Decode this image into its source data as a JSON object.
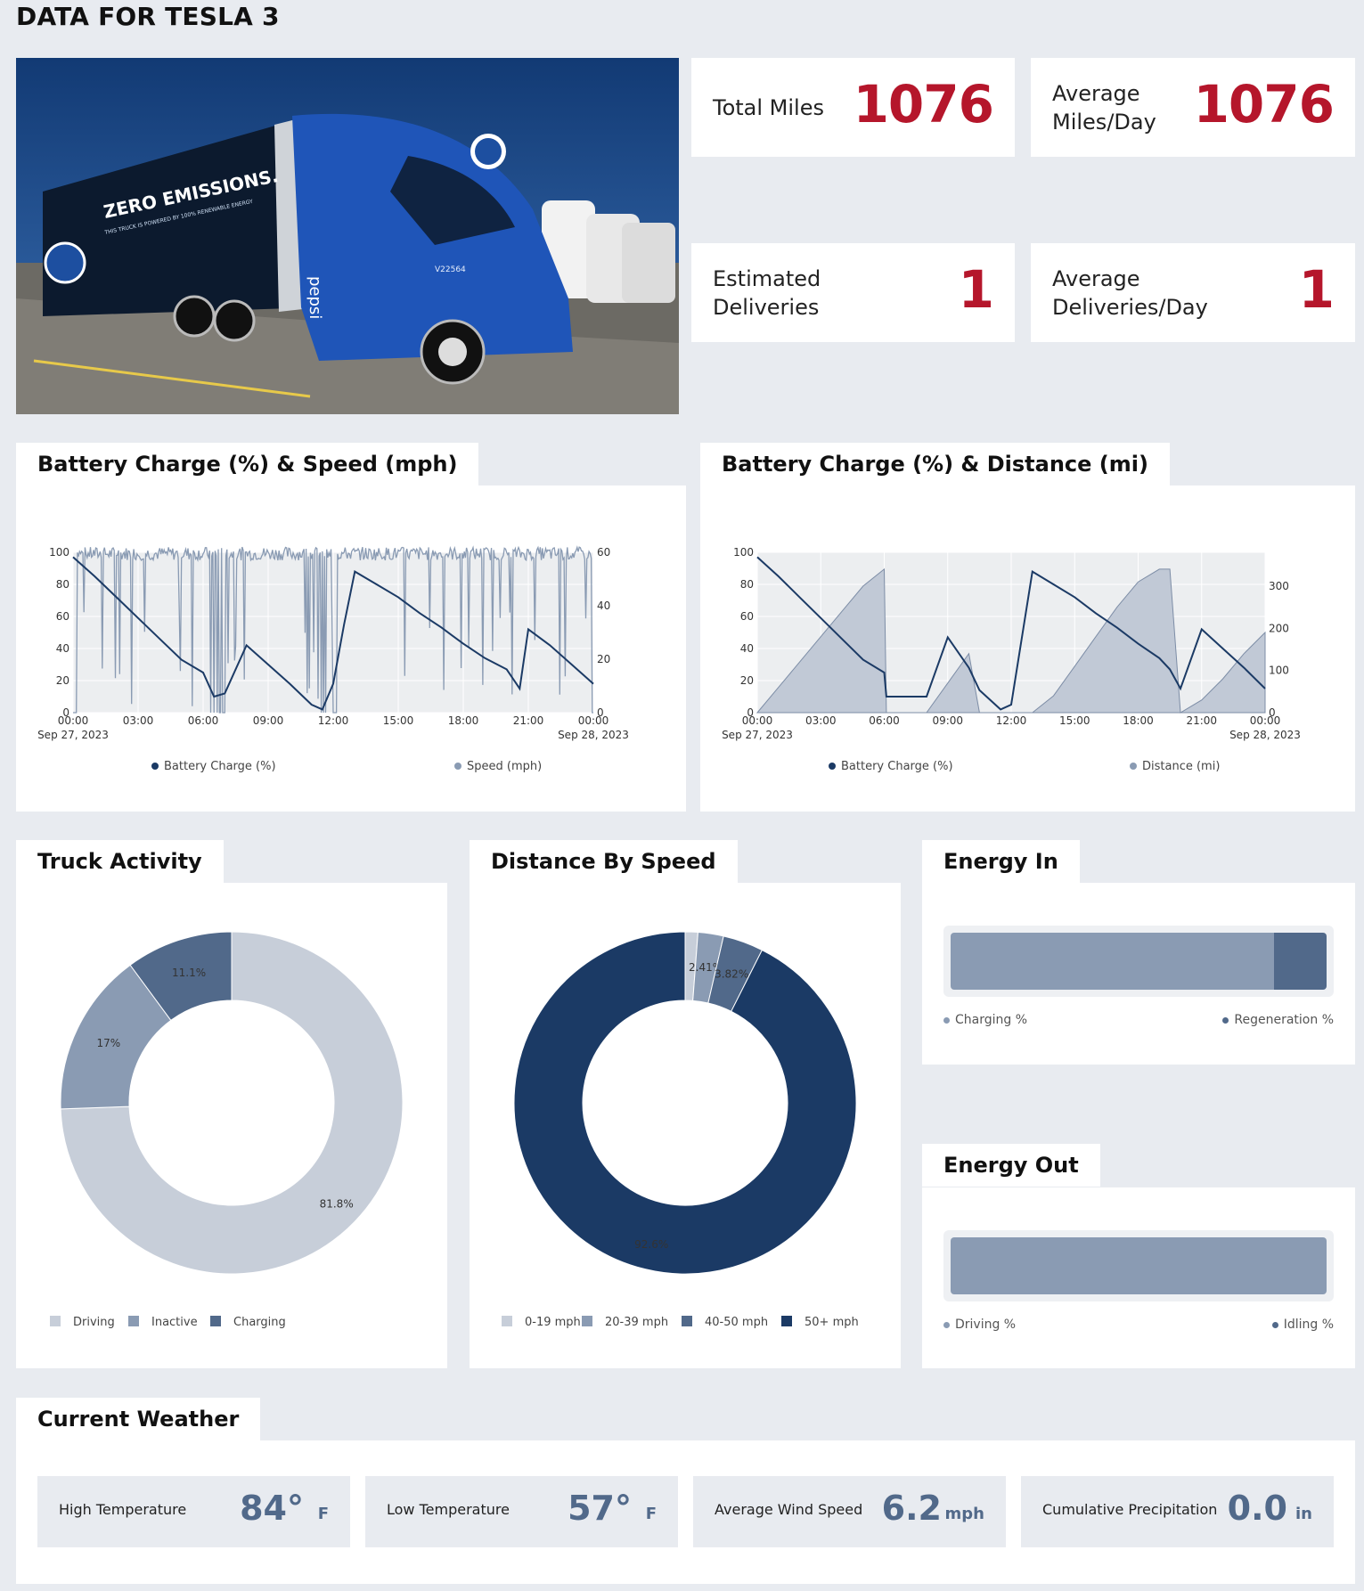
{
  "page": {
    "title": "DATA FOR TESLA 3"
  },
  "stats": [
    {
      "label": "Total Miles",
      "value": "1076"
    },
    {
      "label": "Average Miles/Day",
      "value": "1076"
    },
    {
      "label": "Estimated Deliveries",
      "value": "1"
    },
    {
      "label": "Average Deliveries/Day",
      "value": "1"
    }
  ],
  "hero": {
    "trailer_text": "ZERO EMISSIONS.",
    "trailer_subtext": "THIS TRUCK IS POWERED BY 100% RENEWABLE ENERGY",
    "cab_brand": "pepsi",
    "cab_id": "V22564"
  },
  "colors": {
    "accent_red": "#b5162b",
    "navy": "#1b3a65",
    "slate": "#51698a",
    "steel": "#8a9bb3",
    "light": "#c7ced9",
    "plot_bg": "#eceef0"
  },
  "charts": {
    "battery_speed": {
      "title": "Battery Charge (%) & Speed (mph)",
      "legend": [
        "Battery Charge (%)",
        "Speed (mph)"
      ],
      "xticks": [
        "00:00",
        "03:00",
        "06:00",
        "09:00",
        "12:00",
        "15:00",
        "18:00",
        "21:00",
        "00:00"
      ],
      "xdates": [
        "Sep 27, 2023",
        "Sep 28, 2023"
      ],
      "yticks_left": [
        "0",
        "20",
        "40",
        "60",
        "80",
        "100"
      ],
      "yticks_right": [
        "0",
        "20",
        "40",
        "60"
      ]
    },
    "battery_distance": {
      "title": "Battery Charge (%) & Distance (mi)",
      "legend": [
        "Battery Charge (%)",
        "Distance (mi)"
      ],
      "xticks": [
        "00:00",
        "03:00",
        "06:00",
        "09:00",
        "12:00",
        "15:00",
        "18:00",
        "21:00",
        "00:00"
      ],
      "xdates": [
        "Sep 27, 2023",
        "Sep 28, 2023"
      ],
      "yticks_left": [
        "0",
        "20",
        "40",
        "60",
        "80",
        "100"
      ],
      "yticks_right": [
        "0",
        "100",
        "200",
        "300"
      ]
    },
    "truck_activity": {
      "title": "Truck Activity",
      "legend": [
        "Driving",
        "Inactive",
        "Charging"
      ],
      "labels": [
        "81.8%",
        "11.1%",
        "17%"
      ]
    },
    "distance_by_speed": {
      "title": "Distance By Speed",
      "legend": [
        "0-19 mph",
        "20-39 mph",
        "40-50 mph",
        "50+ mph"
      ],
      "labels": [
        "2.41%",
        "3.82%",
        "92.6%"
      ]
    },
    "energy_in": {
      "title": "Energy In",
      "legend": [
        "Charging %",
        "Regeneration %"
      ]
    },
    "energy_out": {
      "title": "Energy Out",
      "legend": [
        "Driving %",
        "Idling %"
      ]
    }
  },
  "chart_data": [
    {
      "type": "line",
      "title": "Battery Charge (%) & Speed (mph)",
      "x_hours": [
        0,
        1,
        2,
        3,
        4,
        5,
        6,
        6.5,
        7,
        8,
        9,
        10,
        11,
        11.5,
        12,
        12.5,
        13,
        14,
        15,
        16,
        17,
        18,
        19,
        20,
        20.6,
        21,
        22,
        23,
        24
      ],
      "series": [
        {
          "name": "Battery Charge (%)",
          "axis": "left",
          "values": [
            97,
            85,
            72,
            59,
            46,
            33,
            25,
            10,
            12,
            42,
            30,
            18,
            5,
            2,
            18,
            55,
            88,
            80,
            72,
            62,
            53,
            43,
            34,
            27,
            15,
            52,
            42,
            30,
            18
          ]
        },
        {
          "name": "Speed (mph)",
          "axis": "right",
          "range": [
            0,
            60
          ],
          "note": "fluctuating 0-60 mph; mostly 55-62 mph while driving"
        }
      ],
      "ylim_left": [
        0,
        100
      ],
      "ylim_right": [
        0,
        60
      ]
    },
    {
      "type": "area",
      "title": "Battery Charge (%) & Distance (mi)",
      "x_hours": [
        0,
        1,
        2,
        3,
        4,
        5,
        6,
        6.1,
        8,
        9,
        10,
        10.5,
        11.5,
        12,
        13,
        14,
        15,
        16,
        17,
        18,
        19,
        19.5,
        20,
        21,
        22,
        23,
        24
      ],
      "series": [
        {
          "name": "Battery Charge (%)",
          "axis": "left",
          "values": [
            97,
            85,
            72,
            59,
            46,
            33,
            25,
            10,
            10,
            47,
            28,
            14,
            2,
            5,
            88,
            80,
            72,
            62,
            53,
            43,
            34,
            27,
            15,
            52,
            40,
            28,
            15
          ]
        },
        {
          "name": "Distance (mi)",
          "axis": "right",
          "values": [
            0,
            60,
            120,
            180,
            240,
            300,
            340,
            0,
            0,
            70,
            140,
            0,
            0,
            0,
            0,
            40,
            110,
            180,
            250,
            310,
            340,
            340,
            0,
            30,
            80,
            140,
            190
          ]
        }
      ],
      "ylim_left": [
        0,
        100
      ],
      "ylim_right": [
        0,
        380
      ]
    },
    {
      "type": "pie",
      "title": "Truck Activity",
      "categories": [
        "Driving",
        "Inactive",
        "Charging"
      ],
      "values": [
        81.8,
        17,
        11.1
      ]
    },
    {
      "type": "pie",
      "title": "Distance By Speed",
      "categories": [
        "0-19 mph",
        "20-39 mph",
        "40-50 mph",
        "50+ mph"
      ],
      "values": [
        1.2,
        2.41,
        3.82,
        92.6
      ]
    },
    {
      "type": "bar",
      "title": "Energy In",
      "categories": [
        "Charging %",
        "Regeneration %"
      ],
      "values": [
        86,
        14
      ]
    },
    {
      "type": "bar",
      "title": "Energy Out",
      "categories": [
        "Driving %",
        "Idling %"
      ],
      "values": [
        100,
        0
      ]
    }
  ],
  "weather": {
    "title": "Current Weather",
    "items": [
      {
        "label": "High Temperature",
        "value": "84°",
        "unit": "F"
      },
      {
        "label": "Low Temperature",
        "value": "57°",
        "unit": "F"
      },
      {
        "label": "Average Wind Speed",
        "value": "6.2",
        "unit": "mph"
      },
      {
        "label": "Cumulative Precipitation",
        "value": "0.0",
        "unit": "in"
      }
    ]
  }
}
